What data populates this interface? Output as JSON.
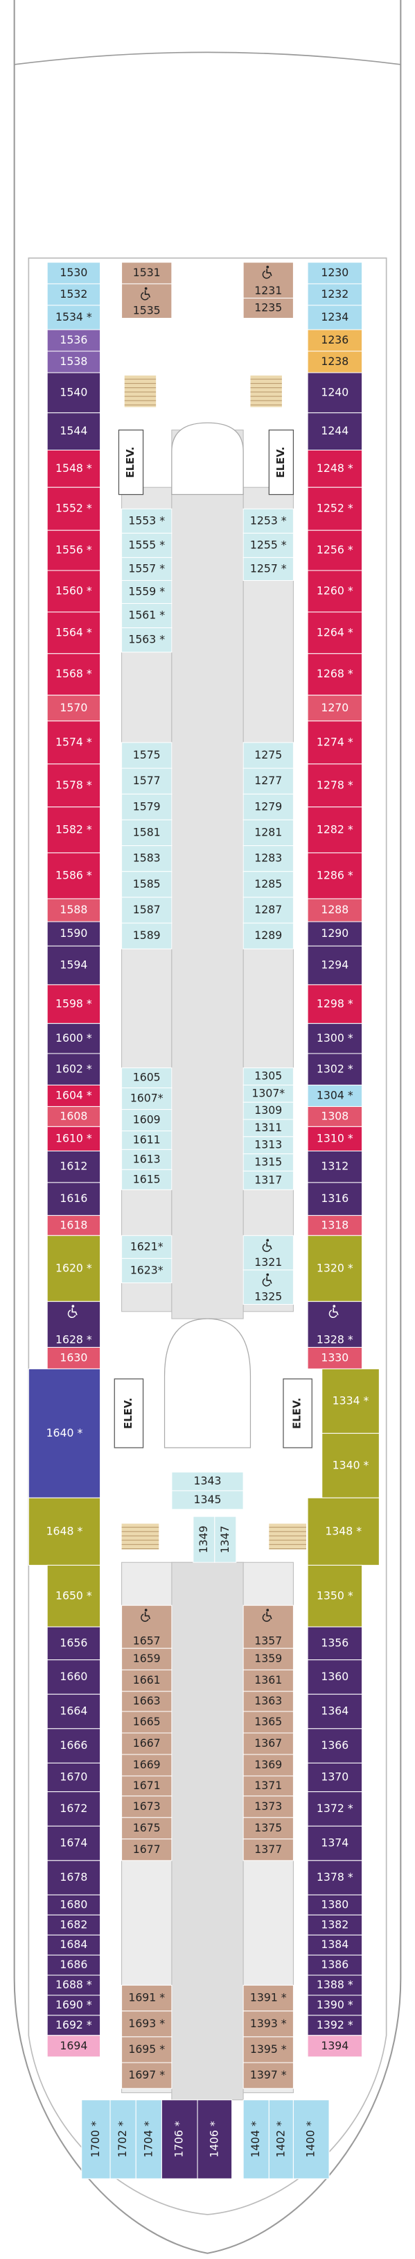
{
  "cabin_groups": [
    [
      {
        "label": "1530",
        "color": "#a9dcef"
      },
      {
        "label": "1532",
        "color": "#a9dcef"
      },
      {
        "label": "1534 *",
        "color": "#a9dcef"
      },
      {
        "label": "1536",
        "color": "#8461ad"
      },
      {
        "label": "1538",
        "color": "#8461ad"
      },
      {
        "label": "1540",
        "color": "#4d2c6f"
      },
      {
        "label": "1544",
        "color": "#4d2c6f"
      },
      {
        "label": "1548 *",
        "color": "#d81b50"
      },
      {
        "label": "1552 *",
        "color": "#d81b50"
      },
      {
        "label": "1556 *",
        "color": "#d81b50"
      },
      {
        "label": "1560 *",
        "color": "#d81b50"
      },
      {
        "label": "1564 *",
        "color": "#d81b50"
      },
      {
        "label": "1568 *",
        "color": "#d81b50"
      },
      {
        "label": "1570",
        "color": "#e2556d"
      },
      {
        "label": "1574 *",
        "color": "#d81b50"
      },
      {
        "label": "1578 *",
        "color": "#d81b50"
      },
      {
        "label": "1582 *",
        "color": "#d81b50"
      },
      {
        "label": "1586 *",
        "color": "#d81b50"
      },
      {
        "label": "1588",
        "color": "#e2556d"
      },
      {
        "label": "1590",
        "color": "#4d2c6f"
      },
      {
        "label": "1594",
        "color": "#4d2c6f"
      },
      {
        "label": "1598 *",
        "color": "#d81b50"
      },
      {
        "label": "1600 *",
        "color": "#4d2c6f"
      },
      {
        "label": "1602 *",
        "color": "#4d2c6f"
      },
      {
        "label": "1604 *",
        "color": "#d81b50"
      },
      {
        "label": "1608",
        "color": "#e2556d"
      },
      {
        "label": "1610 *",
        "color": "#d81b50"
      },
      {
        "label": "1612",
        "color": "#4d2c6f"
      },
      {
        "label": "1616",
        "color": "#4d2c6f"
      },
      {
        "label": "1618",
        "color": "#e2556d"
      },
      {
        "label": "1620 *",
        "color": "#a8a628"
      },
      {
        "label": "1628 *",
        "color": "#4d2c6f",
        "accessible": true
      },
      {
        "label": "1630",
        "color": "#e2556d"
      }
    ],
    [
      {
        "label": "1230",
        "color": "#a9dcef"
      },
      {
        "label": "1232",
        "color": "#a9dcef"
      },
      {
        "label": "1234",
        "color": "#a9dcef"
      },
      {
        "label": "1236",
        "color": "#f0b858"
      },
      {
        "label": "1238",
        "color": "#f0b858"
      },
      {
        "label": "1240",
        "color": "#4d2c6f"
      },
      {
        "label": "1244",
        "color": "#4d2c6f"
      },
      {
        "label": "1248 *",
        "color": "#d81b50"
      },
      {
        "label": "1252 *",
        "color": "#d81b50"
      },
      {
        "label": "1256 *",
        "color": "#d81b50"
      },
      {
        "label": "1260 *",
        "color": "#d81b50"
      },
      {
        "label": "1264 *",
        "color": "#d81b50"
      },
      {
        "label": "1268 *",
        "color": "#d81b50"
      },
      {
        "label": "1270",
        "color": "#e2556d"
      },
      {
        "label": "1274 *",
        "color": "#d81b50"
      },
      {
        "label": "1278 *",
        "color": "#d81b50"
      },
      {
        "label": "1282 *",
        "color": "#d81b50"
      },
      {
        "label": "1286 *",
        "color": "#d81b50"
      },
      {
        "label": "1288",
        "color": "#e2556d"
      },
      {
        "label": "1290",
        "color": "#4d2c6f"
      },
      {
        "label": "1294",
        "color": "#4d2c6f"
      },
      {
        "label": "1298 *",
        "color": "#d81b50"
      },
      {
        "label": "1300 *",
        "color": "#4d2c6f"
      },
      {
        "label": "1302 *",
        "color": "#4d2c6f"
      },
      {
        "label": "1304 *",
        "color": "#a9dcef"
      },
      {
        "label": "1308",
        "color": "#e2556d"
      },
      {
        "label": "1310 *",
        "color": "#d81b50"
      },
      {
        "label": "1312",
        "color": "#4d2c6f"
      },
      {
        "label": "1316",
        "color": "#4d2c6f"
      },
      {
        "label": "1318",
        "color": "#e2556d"
      },
      {
        "label": "1320 *",
        "color": "#a8a628"
      },
      {
        "label": "1328 *",
        "color": "#4d2c6f",
        "accessible": true
      },
      {
        "label": "1330",
        "color": "#e2556d"
      }
    ],
    [
      {
        "label": "1640 *",
        "color": "#4a4aa6"
      },
      {
        "label": "1648 *",
        "color": "#a8a628"
      }
    ],
    [
      {
        "label": "1334 *",
        "color": "#a8a628"
      },
      {
        "label": "1340 *",
        "color": "#a8a628"
      }
    ],
    [
      {
        "label": "1348 *",
        "color": "#a8a628"
      }
    ],
    [
      {
        "label": "1650 *",
        "color": "#a8a628"
      },
      {
        "label": "1656",
        "color": "#4d2c6f"
      },
      {
        "label": "1660",
        "color": "#4d2c6f"
      },
      {
        "label": "1664",
        "color": "#4d2c6f"
      },
      {
        "label": "1666",
        "color": "#4d2c6f"
      },
      {
        "label": "1670",
        "color": "#4d2c6f"
      },
      {
        "label": "1672",
        "color": "#4d2c6f"
      },
      {
        "label": "1674",
        "color": "#4d2c6f"
      },
      {
        "label": "1678",
        "color": "#4d2c6f"
      },
      {
        "label": "1680",
        "color": "#4d2c6f"
      },
      {
        "label": "1682",
        "color": "#4d2c6f"
      },
      {
        "label": "1684",
        "color": "#4d2c6f"
      },
      {
        "label": "1686",
        "color": "#4d2c6f"
      },
      {
        "label": "1688 *",
        "color": "#4d2c6f"
      },
      {
        "label": "1690 *",
        "color": "#4d2c6f"
      },
      {
        "label": "1692 *",
        "color": "#4d2c6f"
      },
      {
        "label": "1694",
        "color": "#f4a9cb"
      }
    ],
    [
      {
        "label": "1350 *",
        "color": "#a8a628"
      },
      {
        "label": "1356",
        "color": "#4d2c6f"
      },
      {
        "label": "1360",
        "color": "#4d2c6f"
      },
      {
        "label": "1364",
        "color": "#4d2c6f"
      },
      {
        "label": "1366",
        "color": "#4d2c6f"
      },
      {
        "label": "1370",
        "color": "#4d2c6f"
      },
      {
        "label": "1372 *",
        "color": "#4d2c6f"
      },
      {
        "label": "1374",
        "color": "#4d2c6f"
      },
      {
        "label": "1378 *",
        "color": "#4d2c6f"
      },
      {
        "label": "1380",
        "color": "#4d2c6f"
      },
      {
        "label": "1382",
        "color": "#4d2c6f"
      },
      {
        "label": "1384",
        "color": "#4d2c6f"
      },
      {
        "label": "1386",
        "color": "#4d2c6f"
      },
      {
        "label": "1388 *",
        "color": "#4d2c6f"
      },
      {
        "label": "1390 *",
        "color": "#4d2c6f"
      },
      {
        "label": "1392 *",
        "color": "#4d2c6f"
      },
      {
        "label": "1394",
        "color": "#f4a9cb"
      }
    ],
    [
      {
        "label": "1531",
        "color": "#c9a38e"
      },
      {
        "label": "1535",
        "color": "#c9a38e",
        "accessible": true
      }
    ],
    [
      {
        "label": "1231",
        "color": "#c9a38e",
        "accessible": true
      },
      {
        "label": "1235",
        "color": "#c9a38e"
      }
    ],
    [
      {
        "label": "1553 *",
        "color": "#cfecef"
      },
      {
        "label": "1555 *",
        "color": "#cfecef"
      },
      {
        "label": "1557 *",
        "color": "#cfecef"
      },
      {
        "label": "1559 *",
        "color": "#cfecef"
      },
      {
        "label": "1561 *",
        "color": "#cfecef"
      },
      {
        "label": "1563 *",
        "color": "#cfecef"
      }
    ],
    [
      {
        "label": "1253 *",
        "color": "#cfecef"
      },
      {
        "label": "1255 *",
        "color": "#cfecef"
      },
      {
        "label": "1257 *",
        "color": "#cfecef"
      }
    ],
    [
      {
        "label": "1575",
        "color": "#cfecef"
      },
      {
        "label": "1577",
        "color": "#cfecef"
      },
      {
        "label": "1579",
        "color": "#cfecef"
      },
      {
        "label": "1581",
        "color": "#cfecef"
      },
      {
        "label": "1583",
        "color": "#cfecef"
      },
      {
        "label": "1585",
        "color": "#cfecef"
      },
      {
        "label": "1587",
        "color": "#cfecef"
      },
      {
        "label": "1589",
        "color": "#cfecef"
      }
    ],
    [
      {
        "label": "1275",
        "color": "#cfecef"
      },
      {
        "label": "1277",
        "color": "#cfecef"
      },
      {
        "label": "1279",
        "color": "#cfecef"
      },
      {
        "label": "1281",
        "color": "#cfecef"
      },
      {
        "label": "1283",
        "color": "#cfecef"
      },
      {
        "label": "1285",
        "color": "#cfecef"
      },
      {
        "label": "1287",
        "color": "#cfecef"
      },
      {
        "label": "1289",
        "color": "#cfecef"
      }
    ],
    [
      {
        "label": "1605",
        "color": "#cfecef"
      },
      {
        "label": "1607*",
        "color": "#cfecef"
      },
      {
        "label": "1609",
        "color": "#cfecef"
      },
      {
        "label": "1611",
        "color": "#cfecef"
      },
      {
        "label": "1613",
        "color": "#cfecef"
      },
      {
        "label": "1615",
        "color": "#cfecef"
      }
    ],
    [
      {
        "label": "1305",
        "color": "#cfecef"
      },
      {
        "label": "1307*",
        "color": "#cfecef"
      },
      {
        "label": "1309",
        "color": "#cfecef"
      },
      {
        "label": "1311",
        "color": "#cfecef"
      },
      {
        "label": "1313",
        "color": "#cfecef"
      },
      {
        "label": "1315",
        "color": "#cfecef"
      },
      {
        "label": "1317",
        "color": "#cfecef"
      }
    ],
    [
      {
        "label": "1621*",
        "color": "#cfecef"
      },
      {
        "label": "1623*",
        "color": "#cfecef"
      }
    ],
    [
      {
        "label": "1321",
        "color": "#cfecef",
        "accessible": true
      },
      {
        "label": "1325",
        "color": "#cfecef",
        "accessible": true
      }
    ],
    [
      {
        "label": "1343",
        "color": "#cfecef"
      },
      {
        "label": "1345",
        "color": "#cfecef"
      }
    ],
    [
      {
        "label": "1349",
        "color": "#cfecef"
      },
      {
        "label": "1347",
        "color": "#cfecef"
      }
    ],
    [
      {
        "label": "1657",
        "color": "#c9a38e",
        "accessible": true
      },
      {
        "label": "1659",
        "color": "#c9a38e"
      },
      {
        "label": "1661",
        "color": "#c9a38e"
      },
      {
        "label": "1663",
        "color": "#c9a38e"
      },
      {
        "label": "1665",
        "color": "#c9a38e"
      },
      {
        "label": "1667",
        "color": "#c9a38e"
      },
      {
        "label": "1669",
        "color": "#c9a38e"
      },
      {
        "label": "1671",
        "color": "#c9a38e"
      },
      {
        "label": "1673",
        "color": "#c9a38e"
      },
      {
        "label": "1675",
        "color": "#c9a38e"
      },
      {
        "label": "1677",
        "color": "#c9a38e"
      }
    ],
    [
      {
        "label": "1357",
        "color": "#c9a38e",
        "accessible": true
      },
      {
        "label": "1359",
        "color": "#c9a38e"
      },
      {
        "label": "1361",
        "color": "#c9a38e"
      },
      {
        "label": "1363",
        "color": "#c9a38e"
      },
      {
        "label": "1365",
        "color": "#c9a38e"
      },
      {
        "label": "1367",
        "color": "#c9a38e"
      },
      {
        "label": "1369",
        "color": "#c9a38e"
      },
      {
        "label": "1371",
        "color": "#c9a38e"
      },
      {
        "label": "1373",
        "color": "#c9a38e"
      },
      {
        "label": "1375",
        "color": "#c9a38e"
      },
      {
        "label": "1377",
        "color": "#c9a38e"
      }
    ],
    [
      {
        "label": "1691 *",
        "color": "#c9a38e"
      },
      {
        "label": "1693 *",
        "color": "#c9a38e"
      },
      {
        "label": "1695 *",
        "color": "#c9a38e"
      },
      {
        "label": "1697 *",
        "color": "#c9a38e"
      }
    ],
    [
      {
        "label": "1391 *",
        "color": "#c9a38e"
      },
      {
        "label": "1393 *",
        "color": "#c9a38e"
      },
      {
        "label": "1395 *",
        "color": "#c9a38e"
      },
      {
        "label": "1397 *",
        "color": "#c9a38e"
      }
    ],
    [
      {
        "label": "1700 *",
        "color": "#a9dcef"
      },
      {
        "label": "1702 *",
        "color": "#a9dcef"
      },
      {
        "label": "1704 *",
        "color": "#a9dcef"
      },
      {
        "label": "1706 *",
        "color": "#4d2c6f"
      },
      {
        "label": "1406 *",
        "color": "#4d2c6f"
      }
    ],
    [
      {
        "label": "1404 *",
        "color": "#a9dcef"
      },
      {
        "label": "1402 *",
        "color": "#a9dcef"
      },
      {
        "label": "1400 *",
        "color": "#a9dcef"
      }
    ]
  ],
  "elevators": [
    "ELEV.",
    "ELEV.",
    "ELEV.",
    "ELEV."
  ]
}
